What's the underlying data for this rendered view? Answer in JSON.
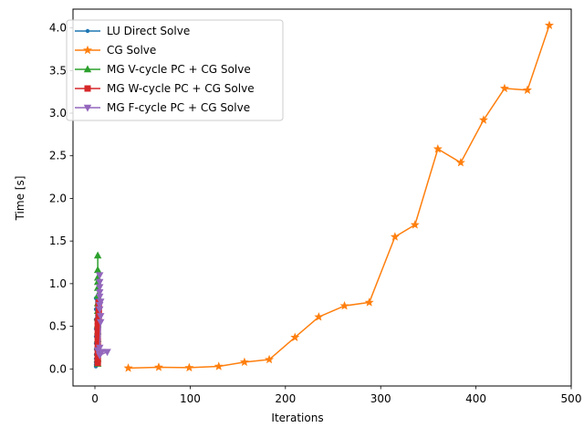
{
  "chart_data": {
    "type": "line",
    "title": "",
    "xlabel": "Iterations",
    "ylabel": "Time [s]",
    "xlim": [
      -23,
      500
    ],
    "ylim": [
      -0.2,
      4.22
    ],
    "xticks": [
      0,
      100,
      200,
      300,
      400,
      500
    ],
    "yticks": [
      0.0,
      0.5,
      1.0,
      1.5,
      2.0,
      2.5,
      3.0,
      3.5,
      4.0
    ],
    "xtick_labels": [
      "0",
      "100",
      "200",
      "300",
      "400",
      "500"
    ],
    "ytick_labels": [
      "0.0",
      "0.5",
      "1.0",
      "1.5",
      "2.0",
      "2.5",
      "3.0",
      "3.5",
      "4.0"
    ],
    "legend_position": "top-left",
    "grid": false,
    "series": [
      {
        "name": "LU Direct Solve",
        "color": "#1f77b4",
        "marker": "point",
        "x": [
          1,
          1,
          1,
          1,
          1,
          1,
          1,
          1,
          1,
          1,
          1,
          1
        ],
        "y": [
          0.03,
          0.05,
          0.08,
          0.12,
          0.17,
          0.23,
          0.3,
          0.38,
          0.47,
          0.58,
          0.7,
          0.83
        ]
      },
      {
        "name": "CG Solve",
        "color": "#ff7f0e",
        "marker": "star",
        "x": [
          35,
          67,
          99,
          130,
          157,
          183,
          210,
          235,
          262,
          288,
          315,
          336,
          360,
          384,
          408,
          430,
          454,
          477
        ],
        "y": [
          0.01,
          0.02,
          0.015,
          0.03,
          0.08,
          0.11,
          0.37,
          0.61,
          0.74,
          0.78,
          1.55,
          1.69,
          2.58,
          2.42,
          2.92,
          3.29,
          3.27,
          4.03
        ]
      },
      {
        "name": "MG V-cycle PC + CG Solve",
        "color": "#2ca02c",
        "marker": "triangle-up",
        "x": [
          3,
          3,
          3,
          3,
          3,
          3,
          3,
          3,
          3,
          3,
          3,
          3,
          3,
          3,
          3,
          3
        ],
        "y": [
          0.06,
          0.12,
          0.19,
          0.27,
          0.35,
          0.44,
          0.52,
          0.6,
          0.68,
          0.77,
          0.86,
          0.95,
          1.02,
          1.07,
          1.16,
          1.33
        ]
      },
      {
        "name": "MG W-cycle PC + CG Solve",
        "color": "#d62728",
        "marker": "square",
        "x": [
          3,
          3,
          3,
          3,
          3,
          3,
          3,
          3,
          3,
          3,
          4,
          4,
          4,
          4,
          4
        ],
        "y": [
          0.07,
          0.1,
          0.15,
          0.2,
          0.26,
          0.32,
          0.38,
          0.44,
          0.5,
          0.56,
          0.62,
          0.66,
          0.7,
          0.74,
          0.78
        ]
      },
      {
        "name": "MG F-cycle PC + CG Solve",
        "color": "#9467bd",
        "marker": "triangle-down",
        "x": [
          3,
          13,
          5,
          7,
          5,
          6,
          6,
          5,
          5,
          6,
          5,
          5,
          5,
          5,
          5
        ],
        "y": [
          0.22,
          0.2,
          0.16,
          0.2,
          0.25,
          0.55,
          0.62,
          0.7,
          0.75,
          0.79,
          0.85,
          0.9,
          0.96,
          1.02,
          1.1
        ]
      }
    ]
  }
}
